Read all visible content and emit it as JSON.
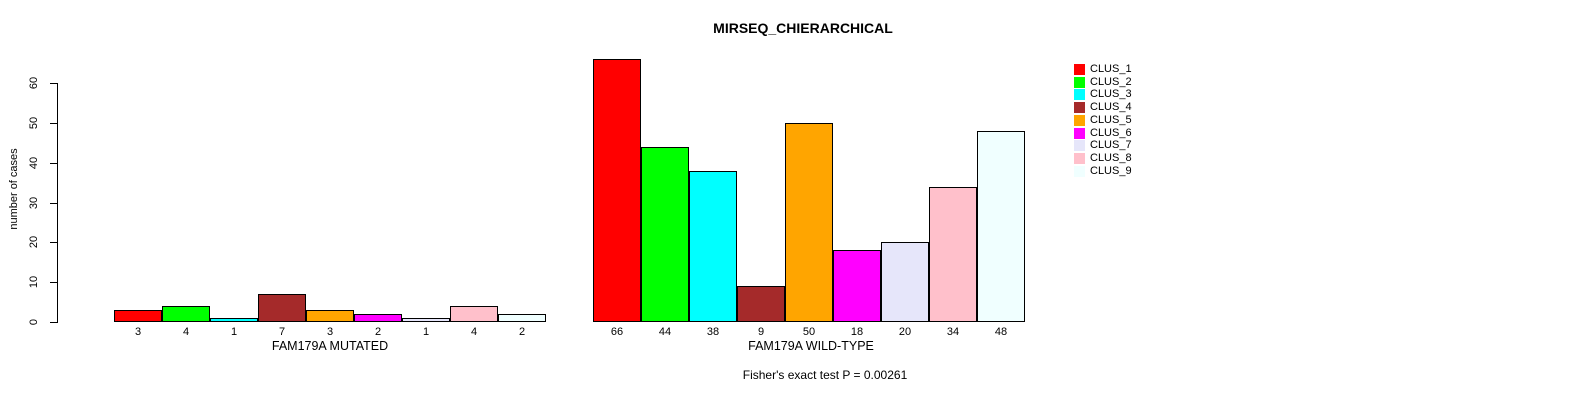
{
  "chart_data": {
    "type": "bar",
    "title": "MIRSEQ_CHIERARCHICAL",
    "ylabel": "number of cases",
    "ylim": [
      0,
      66
    ],
    "yticks": [
      0,
      10,
      20,
      30,
      40,
      50,
      60
    ],
    "grid": false,
    "legend_position": "right",
    "categories": [
      "CLUS_1",
      "CLUS_2",
      "CLUS_3",
      "CLUS_4",
      "CLUS_5",
      "CLUS_6",
      "CLUS_7",
      "CLUS_8",
      "CLUS_9"
    ],
    "colors": [
      "#FF0000",
      "#00FF00",
      "#00FFFF",
      "#A52A2A",
      "#FFA500",
      "#FF00FF",
      "#E6E6FA",
      "#FFC0CB",
      "#F0FFFF"
    ],
    "panels": [
      {
        "xlabel": "FAM179A MUTATED",
        "values": [
          3,
          4,
          1,
          7,
          3,
          2,
          1,
          4,
          2
        ]
      },
      {
        "xlabel": "FAM179A WILD-TYPE",
        "values": [
          66,
          44,
          38,
          9,
          50,
          18,
          20,
          34,
          48
        ]
      }
    ],
    "annotation": "Fisher's exact test P = 0.00261"
  }
}
